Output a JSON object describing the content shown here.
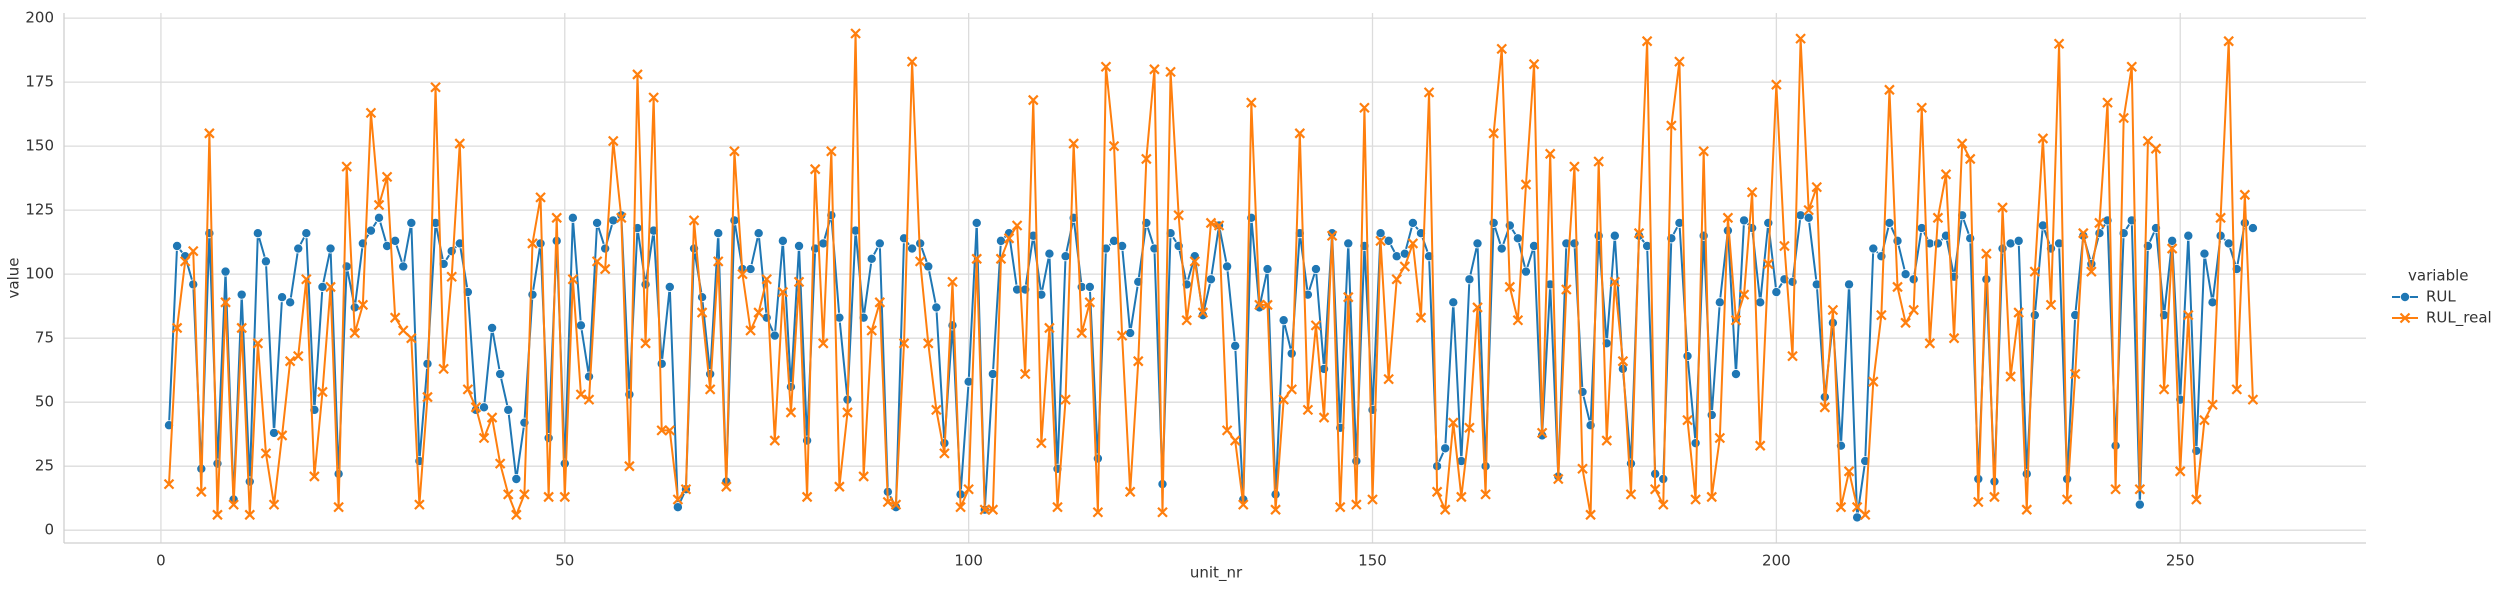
{
  "chart_data": {
    "type": "line",
    "x_label": "unit_nr",
    "y_label": "value",
    "legend_title": "variable",
    "legend": "right",
    "grid": true,
    "x": [
      1,
      2,
      3,
      4,
      5,
      6,
      7,
      8,
      9,
      10,
      11,
      12,
      13,
      14,
      15,
      16,
      17,
      18,
      19,
      20,
      21,
      22,
      23,
      24,
      25,
      26,
      27,
      28,
      29,
      30,
      31,
      32,
      33,
      34,
      35,
      36,
      37,
      38,
      39,
      40,
      41,
      42,
      43,
      44,
      45,
      46,
      47,
      48,
      49,
      50,
      51,
      52,
      53,
      54,
      55,
      56,
      57,
      58,
      59,
      60,
      61,
      62,
      63,
      64,
      65,
      66,
      67,
      68,
      69,
      70,
      71,
      72,
      73,
      74,
      75,
      76,
      77,
      78,
      79,
      80,
      81,
      82,
      83,
      84,
      85,
      86,
      87,
      88,
      89,
      90,
      91,
      92,
      93,
      94,
      95,
      96,
      97,
      98,
      99,
      100,
      101,
      102,
      103,
      104,
      105,
      106,
      107,
      108,
      109,
      110,
      111,
      112,
      113,
      114,
      115,
      116,
      117,
      118,
      119,
      120,
      121,
      122,
      123,
      124,
      125,
      126,
      127,
      128,
      129,
      130,
      131,
      132,
      133,
      134,
      135,
      136,
      137,
      138,
      139,
      140,
      141,
      142,
      143,
      144,
      145,
      146,
      147,
      148,
      149,
      150,
      151,
      152,
      153,
      154,
      155,
      156,
      157,
      158,
      159,
      160,
      161,
      162,
      163,
      164,
      165,
      166,
      167,
      168,
      169,
      170,
      171,
      172,
      173,
      174,
      175,
      176,
      177,
      178,
      179,
      180,
      181,
      182,
      183,
      184,
      185,
      186,
      187,
      188,
      189,
      190,
      191,
      192,
      193,
      194,
      195,
      196,
      197,
      198,
      199,
      200,
      201,
      202,
      203,
      204,
      205,
      206,
      207,
      208,
      209,
      210,
      211,
      212,
      213,
      214,
      215,
      216,
      217,
      218,
      219,
      220,
      221,
      222,
      223,
      224,
      225,
      226,
      227,
      228,
      229,
      230,
      231,
      232,
      233,
      234,
      235,
      236,
      237,
      238,
      239,
      240,
      241,
      242,
      243,
      244,
      245,
      246,
      247,
      248,
      249,
      250,
      251,
      252,
      253,
      254,
      255,
      256,
      257,
      258,
      259
    ],
    "series": [
      {
        "name": "RUL",
        "color": "#1f77b4",
        "marker": "o",
        "values": [
          41,
          111,
          107,
          96,
          24,
          116,
          26,
          101,
          12,
          92,
          19,
          116,
          105,
          38,
          91,
          89,
          110,
          116,
          47,
          95,
          110,
          22,
          103,
          87,
          112,
          117,
          122,
          111,
          113,
          103,
          120,
          27,
          65,
          120,
          104,
          109,
          112,
          93,
          47,
          48,
          79,
          61,
          47,
          20,
          42,
          92,
          112,
          36,
          113,
          26,
          122,
          80,
          60,
          120,
          110,
          121,
          123,
          53,
          118,
          96,
          117,
          65,
          95,
          9,
          16,
          110,
          91,
          61,
          116,
          19,
          121,
          102,
          102,
          116,
          83,
          76,
          113,
          56,
          111,
          35,
          110,
          112,
          123,
          83,
          51,
          117,
          83,
          106,
          112,
          15,
          9,
          114,
          110,
          112,
          103,
          87,
          34,
          80,
          14,
          58,
          120,
          8,
          61,
          113,
          116,
          94,
          94,
          115,
          92,
          108,
          24,
          107,
          122,
          95,
          95,
          28,
          110,
          113,
          111,
          77,
          97,
          120,
          110,
          18,
          116,
          111,
          96,
          107,
          84,
          98,
          119,
          103,
          72,
          12,
          122,
          87,
          102,
          14,
          82,
          69,
          116,
          92,
          102,
          63,
          116,
          40,
          112,
          27,
          111,
          47,
          116,
          113,
          107,
          108,
          120,
          116,
          107,
          25,
          32,
          89,
          27,
          98,
          112,
          25,
          120,
          110,
          119,
          114,
          101,
          111,
          37,
          96,
          21,
          112,
          112,
          54,
          41,
          115,
          73,
          115,
          63,
          26,
          115,
          111,
          22,
          20,
          114,
          120,
          68,
          34,
          115,
          45,
          89,
          117,
          61,
          121,
          118,
          89,
          120,
          93,
          98,
          97,
          123,
          122,
          96,
          52,
          81,
          33,
          96,
          5,
          27,
          110,
          107,
          120,
          113,
          100,
          98,
          118,
          112,
          112,
          115,
          99,
          123,
          114,
          20,
          98,
          19,
          110,
          112,
          113,
          22,
          84,
          119,
          110,
          112,
          20,
          84,
          115,
          104,
          116,
          121,
          33,
          116,
          121,
          10,
          111,
          118,
          84,
          113,
          51,
          115,
          31,
          108,
          89,
          115,
          112,
          102,
          120,
          118
        ]
      },
      {
        "name": "RUL_real",
        "color": "#ff7f0e",
        "marker": "x",
        "values": [
          18,
          79,
          105,
          109,
          15,
          155,
          6,
          89,
          10,
          79,
          6,
          73,
          30,
          10,
          37,
          66,
          68,
          98,
          21,
          54,
          95,
          9,
          142,
          77,
          88,
          163,
          127,
          138,
          83,
          78,
          75,
          10,
          52,
          173,
          63,
          99,
          151,
          55,
          48,
          36,
          44,
          26,
          14,
          6,
          14,
          112,
          130,
          13,
          122,
          13,
          98,
          53,
          51,
          105,
          102,
          152,
          122,
          25,
          178,
          73,
          169,
          39,
          39,
          12,
          16,
          121,
          85,
          55,
          105,
          17,
          148,
          100,
          78,
          85,
          98,
          35,
          93,
          46,
          97,
          13,
          141,
          73,
          148,
          17,
          46,
          194,
          21,
          78,
          89,
          11,
          10,
          73,
          183,
          105,
          73,
          47,
          30,
          97,
          9,
          16,
          106,
          8,
          8,
          106,
          114,
          119,
          61,
          168,
          34,
          79,
          9,
          51,
          151,
          77,
          89,
          7,
          181,
          150,
          76,
          15,
          66,
          145,
          180,
          7,
          179,
          123,
          82,
          105,
          85,
          120,
          119,
          39,
          35,
          10,
          167,
          88,
          88,
          8,
          51,
          55,
          155,
          47,
          80,
          44,
          115,
          9,
          91,
          10,
          165,
          12,
          113,
          59,
          98,
          103,
          112,
          83,
          171,
          15,
          8,
          42,
          13,
          40,
          87,
          14,
          155,
          188,
          95,
          82,
          135,
          182,
          38,
          147,
          20,
          94,
          142,
          24,
          6,
          144,
          35,
          97,
          66,
          14,
          116,
          191,
          16,
          10,
          158,
          183,
          43,
          12,
          148,
          13,
          36,
          122,
          82,
          92,
          132,
          33,
          104,
          174,
          111,
          68,
          192,
          125,
          134,
          48,
          86,
          9,
          23,
          9,
          6,
          58,
          84,
          172,
          95,
          81,
          86,
          165,
          73,
          122,
          139,
          75,
          151,
          145,
          11,
          108,
          13,
          126,
          60,
          85,
          8,
          101,
          153,
          88,
          190,
          12,
          61,
          116,
          101,
          120,
          167,
          16,
          161,
          181,
          16,
          152,
          149,
          55,
          110,
          23,
          84,
          12,
          43,
          49,
          122,
          191,
          55,
          131,
          51
        ]
      }
    ],
    "xlim": [
      -12,
      273
    ],
    "xticks": [
      0,
      50,
      100,
      150,
      200,
      250
    ],
    "ylim": [
      -5,
      202
    ],
    "yticks": [
      0,
      25,
      50,
      75,
      100,
      125,
      150,
      175,
      200
    ]
  }
}
